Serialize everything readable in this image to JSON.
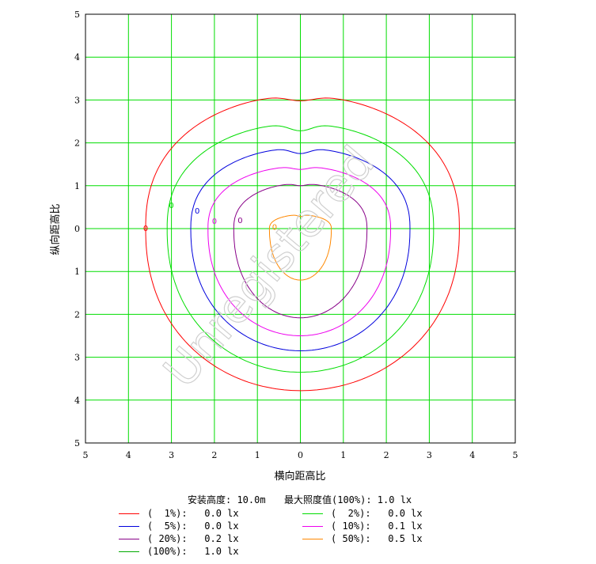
{
  "chart_data": {
    "type": "line",
    "title": "",
    "xlabel": "横向距高比",
    "ylabel": "纵向距高比",
    "xlim": [
      -5,
      5
    ],
    "ylim": [
      -5,
      5
    ],
    "x_tick_labels": [
      "5",
      "4",
      "3",
      "2",
      "1",
      "0",
      "1",
      "2",
      "3",
      "4",
      "5"
    ],
    "y_tick_labels": [
      "5",
      "4",
      "3",
      "2",
      "1",
      "0",
      "1",
      "2",
      "3",
      "4",
      "5"
    ],
    "grid": true,
    "grid_color": "#00dd00",
    "watermark": "Unregistered",
    "header": {
      "mount_height": "安装高度: 10.0m",
      "max_illuminance": "最大照度值(100%): 1.0 lx"
    },
    "series": [
      {
        "name": "(  1%):   0.0 lx",
        "color": "#ff0000",
        "rx_left": 3.6,
        "rx_right": 3.7,
        "top": 3.1,
        "notch": 2.98,
        "bottom": -3.78,
        "label_x": -3.6,
        "label_y": 0.02
      },
      {
        "name": "(  2%):   0.0 lx",
        "color": "#00dd00",
        "rx_left": 3.1,
        "rx_right": 3.1,
        "top": 2.45,
        "notch": 2.28,
        "bottom": -3.35,
        "label_x": -3.0,
        "label_y": 0.55
      },
      {
        "name": "(  5%):   0.0 lx",
        "color": "#0000dd",
        "rx_left": 2.55,
        "rx_right": 2.55,
        "top": 1.88,
        "notch": 1.75,
        "bottom": -2.85,
        "label_x": -2.4,
        "label_y": 0.42
      },
      {
        "name": "( 10%):   0.1 lx",
        "color": "#ee00ee",
        "rx_left": 2.15,
        "rx_right": 2.1,
        "top": 1.45,
        "notch": 1.38,
        "bottom": -2.5,
        "label_x": -2.0,
        "label_y": 0.18
      },
      {
        "name": "( 20%):   0.2 lx",
        "color": "#880088",
        "rx_left": 1.55,
        "rx_right": 1.55,
        "top": 1.05,
        "notch": 1.0,
        "bottom": -2.08,
        "label_x": -1.4,
        "label_y": 0.2
      },
      {
        "name": "( 50%):   0.5 lx",
        "color": "#ff8800",
        "rx_left": 0.72,
        "rx_right": 0.72,
        "top": 0.32,
        "notch": 0.28,
        "bottom": -1.2,
        "label_x": -0.6,
        "label_y": 0.05
      },
      {
        "name": "(100%):   1.0 lx",
        "color": "#00aa00",
        "rx_left": 0,
        "rx_right": 0,
        "top": 0,
        "notch": 0,
        "bottom": 0,
        "label_x": 0,
        "label_y": 0
      }
    ],
    "contour_label_char": "0"
  },
  "legend": {
    "left": [
      {
        "text": "(  1%):   0.0 lx",
        "color": "#ff0000"
      },
      {
        "text": "(  5%):   0.0 lx",
        "color": "#0000dd"
      },
      {
        "text": "( 20%):   0.2 lx",
        "color": "#880088"
      },
      {
        "text": "(100%):   1.0 lx",
        "color": "#00aa00"
      }
    ],
    "right": [
      {
        "text": "(  2%):   0.0 lx",
        "color": "#00dd00"
      },
      {
        "text": "( 10%):   0.1 lx",
        "color": "#ee00ee"
      },
      {
        "text": "( 50%):   0.5 lx",
        "color": "#ff8800"
      }
    ]
  }
}
